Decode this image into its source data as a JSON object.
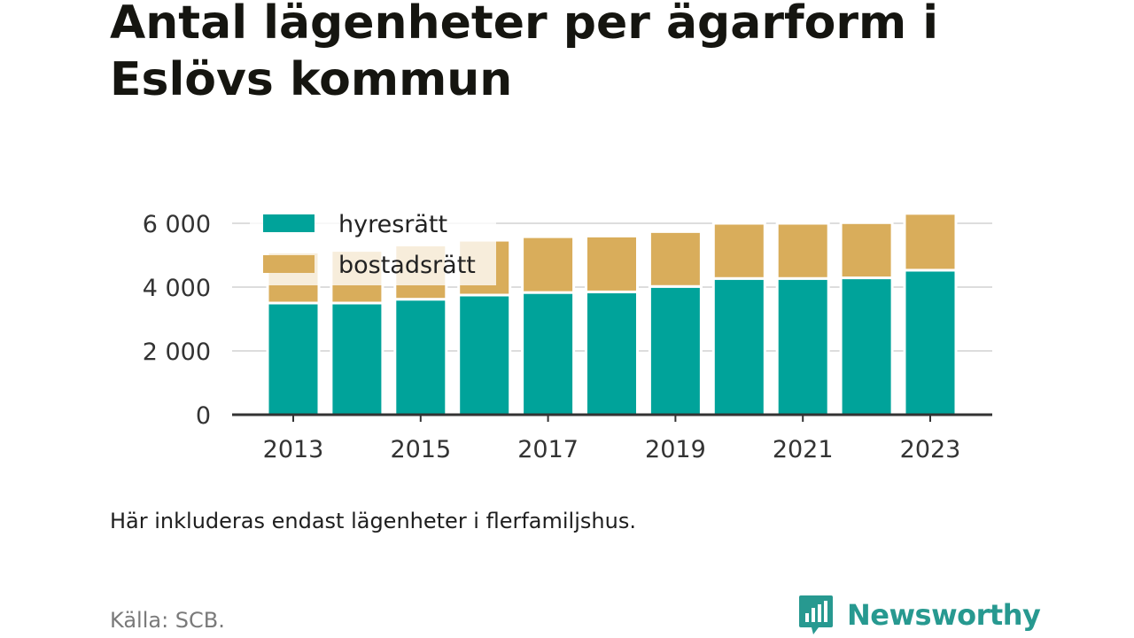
{
  "title": "Antal lägenheter per ägarform i Eslövs kommun",
  "note": "Här inkluderas endast lägenheter i flerfamiljshus.",
  "source": "Källa: SCB.",
  "brand": {
    "name": "Newsworthy",
    "icon": "newsworthy-bar-chart-icon",
    "color": "#279990"
  },
  "chart_data": {
    "type": "bar",
    "stacked": true,
    "categories": [
      "2013",
      "2014",
      "2015",
      "2016",
      "2017",
      "2018",
      "2019",
      "2020",
      "2021",
      "2022",
      "2023"
    ],
    "x_tick_labels": [
      "2013",
      "2015",
      "2017",
      "2019",
      "2021",
      "2023"
    ],
    "series": [
      {
        "name": "hyresrätt",
        "color": "#00a39a",
        "values": [
          3500,
          3500,
          3620,
          3750,
          3830,
          3850,
          4020,
          4270,
          4270,
          4290,
          4530
        ]
      },
      {
        "name": "bostadsrätt",
        "color": "#d9ad5b",
        "values": [
          1600,
          1650,
          1700,
          1720,
          1750,
          1750,
          1720,
          1730,
          1730,
          1730,
          1780
        ]
      }
    ],
    "ylim": [
      0,
      6000
    ],
    "yticks": [
      0,
      2000,
      4000,
      6000
    ],
    "ytick_labels": [
      "0",
      "2 000",
      "4 000",
      "6 000"
    ],
    "xlabel": "",
    "ylabel": "",
    "grid": "horizontal",
    "legend_position": "top-left"
  }
}
